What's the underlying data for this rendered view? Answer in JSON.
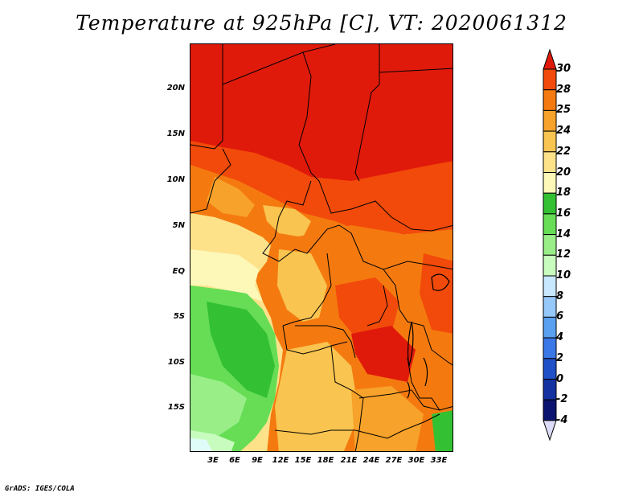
{
  "title": "Temperature at 925hPa [C], VT: 2020061312",
  "credit": "GrADS: IGES/COLA",
  "lat_labels": [
    "20N",
    "15N",
    "10N",
    "5N",
    "EQ",
    "5S",
    "10S",
    "15S"
  ],
  "lon_labels": [
    "3E",
    "6E",
    "9E",
    "12E",
    "15E",
    "18E",
    "21E",
    "24E",
    "27E",
    "30E",
    "33E"
  ],
  "colorbar": {
    "levels": [
      "30",
      "28",
      "25",
      "24",
      "22",
      "20",
      "18",
      "16",
      "14",
      "12",
      "10",
      "8",
      "6",
      "4",
      "2",
      "0",
      "-2",
      "-4"
    ],
    "colors": [
      "#e01a0a",
      "#f24a0a",
      "#f47a10",
      "#f7a22a",
      "#f9c450",
      "#fde28a",
      "#fdf7b8",
      "#33c133",
      "#66dd55",
      "#99ee88",
      "#c8fcbe",
      "#c8e8ff",
      "#96c8fa",
      "#5aa0f0",
      "#3a78e8",
      "#2050c8",
      "#1432a0",
      "#0a1470"
    ],
    "top_triangle": "#e01a0a",
    "bottom_triangle": "#dcdcf8"
  },
  "color_roles": {
    "temp_30": "#e01a0a",
    "temp_28": "#f24a0a",
    "temp_25": "#f47a10",
    "temp_24": "#f7a22a",
    "temp_22": "#f9c450",
    "temp_20": "#fde28a",
    "temp_18": "#fdf7b8",
    "temp_16": "#33c133",
    "temp_14": "#66dd55",
    "temp_12": "#99ee88",
    "temp_10": "#c8fcbe"
  }
}
